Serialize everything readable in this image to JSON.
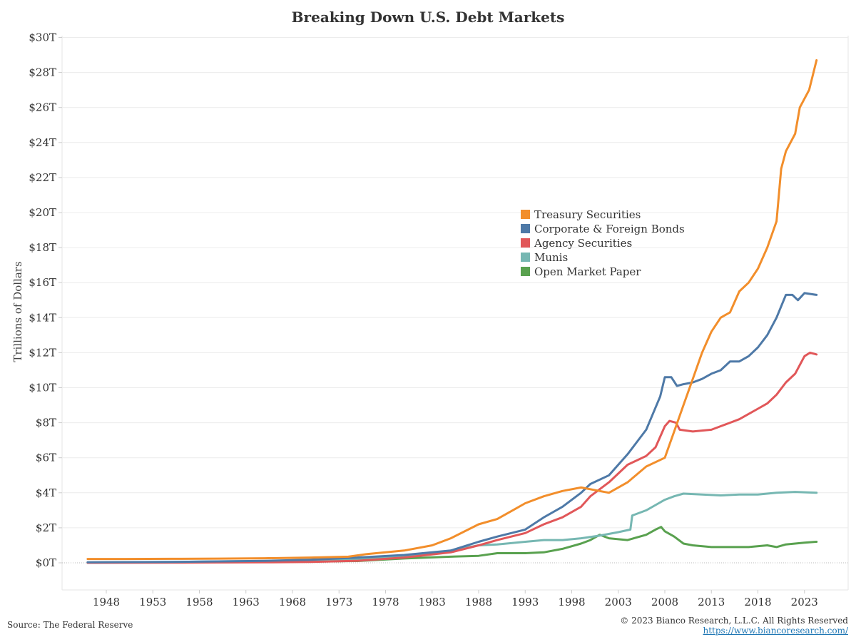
{
  "chart_data": {
    "type": "line",
    "title": "Breaking Down U.S. Debt Markets",
    "ylabel": "Trillions of Dollars",
    "xlabel": "",
    "ylim": [
      -1.5,
      30
    ],
    "xlim": [
      1945.8,
      2025.6
    ],
    "y_ticks": [
      0,
      2,
      4,
      6,
      8,
      10,
      12,
      14,
      16,
      18,
      20,
      22,
      24,
      26,
      28,
      30
    ],
    "y_tick_labels": [
      "$0T",
      "$2T",
      "$4T",
      "$6T",
      "$8T",
      "$10T",
      "$12T",
      "$14T",
      "$16T",
      "$18T",
      "$20T",
      "$22T",
      "$24T",
      "$26T",
      "$28T",
      "$30T"
    ],
    "x_ticks": [
      1948,
      1953,
      1958,
      1963,
      1968,
      1973,
      1978,
      1983,
      1988,
      1993,
      1998,
      2003,
      2008,
      2013,
      2018,
      2023
    ],
    "x_tick_labels": [
      "1948",
      "1953",
      "1958",
      "1963",
      "1968",
      "1973",
      "1978",
      "1983",
      "1988",
      "1993",
      "1998",
      "2003",
      "2008",
      "2013",
      "2018",
      "2023"
    ],
    "grid": "horizontal",
    "legend_position": "center",
    "series": [
      {
        "name": "Treasury Securities",
        "color": "#f28e2b",
        "points": [
          [
            1946,
            0.22
          ],
          [
            1950,
            0.22
          ],
          [
            1955,
            0.23
          ],
          [
            1960,
            0.24
          ],
          [
            1965,
            0.26
          ],
          [
            1970,
            0.3
          ],
          [
            1974,
            0.35
          ],
          [
            1976,
            0.5
          ],
          [
            1980,
            0.7
          ],
          [
            1983,
            1.0
          ],
          [
            1985,
            1.4
          ],
          [
            1988,
            2.2
          ],
          [
            1990,
            2.5
          ],
          [
            1992,
            3.1
          ],
          [
            1993,
            3.4
          ],
          [
            1995,
            3.8
          ],
          [
            1997,
            4.1
          ],
          [
            1999,
            4.3
          ],
          [
            2001,
            4.1
          ],
          [
            2002,
            4.0
          ],
          [
            2004,
            4.6
          ],
          [
            2006,
            5.5
          ],
          [
            2008,
            6.0
          ],
          [
            2009,
            7.5
          ],
          [
            2010,
            9.0
          ],
          [
            2011,
            10.5
          ],
          [
            2012,
            12.0
          ],
          [
            2013,
            13.2
          ],
          [
            2014,
            14.0
          ],
          [
            2015,
            14.3
          ],
          [
            2016,
            15.5
          ],
          [
            2017,
            16.0
          ],
          [
            2018,
            16.8
          ],
          [
            2019,
            18.0
          ],
          [
            2020,
            19.5
          ],
          [
            2020.5,
            22.5
          ],
          [
            2021,
            23.5
          ],
          [
            2022,
            24.5
          ],
          [
            2022.5,
            26.0
          ],
          [
            2023.5,
            27.0
          ],
          [
            2024.3,
            28.7
          ]
        ]
      },
      {
        "name": "Corporate & Foreign Bonds",
        "color": "#4e79a7",
        "points": [
          [
            1946,
            0.03
          ],
          [
            1950,
            0.04
          ],
          [
            1955,
            0.05
          ],
          [
            1960,
            0.08
          ],
          [
            1965,
            0.11
          ],
          [
            1970,
            0.18
          ],
          [
            1975,
            0.3
          ],
          [
            1980,
            0.45
          ],
          [
            1985,
            0.7
          ],
          [
            1988,
            1.2
          ],
          [
            1990,
            1.5
          ],
          [
            1993,
            1.9
          ],
          [
            1995,
            2.6
          ],
          [
            1997,
            3.2
          ],
          [
            1999,
            4.0
          ],
          [
            2000,
            4.5
          ],
          [
            2002,
            5.0
          ],
          [
            2004,
            6.2
          ],
          [
            2006,
            7.6
          ],
          [
            2007.5,
            9.5
          ],
          [
            2008,
            10.6
          ],
          [
            2008.7,
            10.6
          ],
          [
            2009.3,
            10.1
          ],
          [
            2010,
            10.2
          ],
          [
            2011,
            10.3
          ],
          [
            2012,
            10.5
          ],
          [
            2013,
            10.8
          ],
          [
            2014,
            11.0
          ],
          [
            2015,
            11.5
          ],
          [
            2016,
            11.5
          ],
          [
            2017,
            11.8
          ],
          [
            2018,
            12.3
          ],
          [
            2019,
            13.0
          ],
          [
            2020,
            14.0
          ],
          [
            2021,
            15.3
          ],
          [
            2021.7,
            15.3
          ],
          [
            2022.3,
            15.0
          ],
          [
            2023,
            15.4
          ],
          [
            2024.3,
            15.3
          ]
        ]
      },
      {
        "name": "Agency Securities",
        "color": "#e15759",
        "points": [
          [
            1946,
            0.0
          ],
          [
            1955,
            0.01
          ],
          [
            1960,
            0.02
          ],
          [
            1965,
            0.03
          ],
          [
            1970,
            0.05
          ],
          [
            1975,
            0.12
          ],
          [
            1980,
            0.3
          ],
          [
            1985,
            0.6
          ],
          [
            1988,
            1.0
          ],
          [
            1990,
            1.3
          ],
          [
            1993,
            1.7
          ],
          [
            1995,
            2.2
          ],
          [
            1997,
            2.6
          ],
          [
            1999,
            3.2
          ],
          [
            2000,
            3.8
          ],
          [
            2002,
            4.6
          ],
          [
            2004,
            5.6
          ],
          [
            2006,
            6.1
          ],
          [
            2007,
            6.6
          ],
          [
            2008,
            7.8
          ],
          [
            2008.5,
            8.1
          ],
          [
            2009.2,
            8.0
          ],
          [
            2009.6,
            7.6
          ],
          [
            2011,
            7.5
          ],
          [
            2013,
            7.6
          ],
          [
            2014,
            7.8
          ],
          [
            2015,
            8.0
          ],
          [
            2016,
            8.2
          ],
          [
            2017,
            8.5
          ],
          [
            2018,
            8.8
          ],
          [
            2019,
            9.1
          ],
          [
            2020,
            9.6
          ],
          [
            2021,
            10.3
          ],
          [
            2022,
            10.8
          ],
          [
            2023,
            11.8
          ],
          [
            2023.6,
            12.0
          ],
          [
            2024.3,
            11.9
          ]
        ]
      },
      {
        "name": "Munis",
        "color": "#76b7b2",
        "points": [
          [
            1946,
            0.02
          ],
          [
            1955,
            0.05
          ],
          [
            1960,
            0.08
          ],
          [
            1965,
            0.1
          ],
          [
            1970,
            0.14
          ],
          [
            1975,
            0.2
          ],
          [
            1980,
            0.35
          ],
          [
            1985,
            0.7
          ],
          [
            1988,
            1.0
          ],
          [
            1990,
            1.05
          ],
          [
            1993,
            1.2
          ],
          [
            1995,
            1.3
          ],
          [
            1997,
            1.3
          ],
          [
            1999,
            1.4
          ],
          [
            2001,
            1.55
          ],
          [
            2003,
            1.75
          ],
          [
            2004.3,
            1.9
          ],
          [
            2004.5,
            2.7
          ],
          [
            2006,
            3.0
          ],
          [
            2007,
            3.3
          ],
          [
            2008,
            3.6
          ],
          [
            2009,
            3.8
          ],
          [
            2010,
            3.95
          ],
          [
            2012,
            3.9
          ],
          [
            2014,
            3.85
          ],
          [
            2016,
            3.9
          ],
          [
            2018,
            3.9
          ],
          [
            2020,
            4.0
          ],
          [
            2022,
            4.05
          ],
          [
            2024.3,
            4.0
          ]
        ]
      },
      {
        "name": "Open Market Paper",
        "color": "#59a14f",
        "points": [
          [
            1946,
            0.02
          ],
          [
            1955,
            0.02
          ],
          [
            1960,
            0.03
          ],
          [
            1965,
            0.05
          ],
          [
            1970,
            0.08
          ],
          [
            1975,
            0.1
          ],
          [
            1980,
            0.25
          ],
          [
            1985,
            0.35
          ],
          [
            1988,
            0.4
          ],
          [
            1990,
            0.55
          ],
          [
            1993,
            0.55
          ],
          [
            1995,
            0.6
          ],
          [
            1997,
            0.8
          ],
          [
            1999,
            1.1
          ],
          [
            2000,
            1.3
          ],
          [
            2001,
            1.6
          ],
          [
            2002,
            1.4
          ],
          [
            2004,
            1.3
          ],
          [
            2006,
            1.6
          ],
          [
            2007,
            1.9
          ],
          [
            2007.6,
            2.05
          ],
          [
            2008,
            1.8
          ],
          [
            2009,
            1.5
          ],
          [
            2010,
            1.1
          ],
          [
            2011,
            1.0
          ],
          [
            2013,
            0.9
          ],
          [
            2015,
            0.9
          ],
          [
            2017,
            0.9
          ],
          [
            2019,
            1.0
          ],
          [
            2020,
            0.9
          ],
          [
            2021,
            1.05
          ],
          [
            2022,
            1.1
          ],
          [
            2023,
            1.15
          ],
          [
            2024.3,
            1.2
          ]
        ]
      }
    ]
  },
  "footer": {
    "source": "Source: The Federal Reserve",
    "copyright": "© 2023 Bianco Research, L.L.C. All Rights Reserved",
    "url": "https://www.biancoresearch.com/"
  }
}
